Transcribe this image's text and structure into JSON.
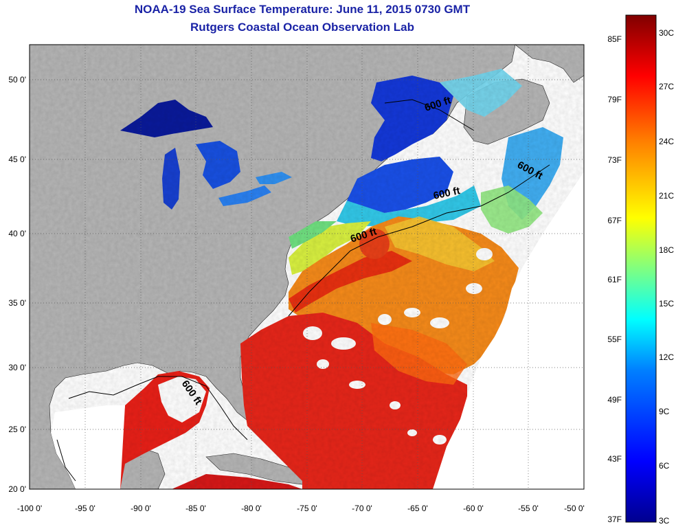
{
  "title_line1": "NOAA-19 Sea Surface Temperature:  June 11, 2015 0730 GMT",
  "title_line2": "Rutgers Coastal Ocean Observation Lab",
  "map": {
    "lon_labels": [
      "-100 0'",
      "-95 0'",
      "-90 0'",
      "-85 0'",
      "-80 0'",
      "-75 0'",
      "-70 0'",
      "-65 0'",
      "-60 0'",
      "-55 0'",
      "-50 0'"
    ],
    "lat_labels": [
      "50 0'",
      "45 0'",
      "40 0'",
      "35 0'",
      "30 0'",
      "25 0'",
      "20 0'"
    ],
    "isobath_labels": [
      "600 ft",
      "600 ft",
      "600 ft",
      "600 ft",
      "600 ft"
    ],
    "colors": {
      "land": "#b5b5b5",
      "no_data": "#ffffff",
      "grid": "#555555"
    }
  },
  "colorbar": {
    "fahrenheit_labels": [
      "85F",
      "79F",
      "73F",
      "67F",
      "61F",
      "55F",
      "49F",
      "43F",
      "37F"
    ],
    "celsius_labels": [
      "30C",
      "27C",
      "24C",
      "21C",
      "18C",
      "15C",
      "12C",
      "9C",
      "6C",
      "3C"
    ],
    "colormap": [
      "#00008f",
      "#0000ff",
      "#0080ff",
      "#00ffff",
      "#80ff80",
      "#ffff00",
      "#ff8000",
      "#ff0000",
      "#800000"
    ]
  }
}
